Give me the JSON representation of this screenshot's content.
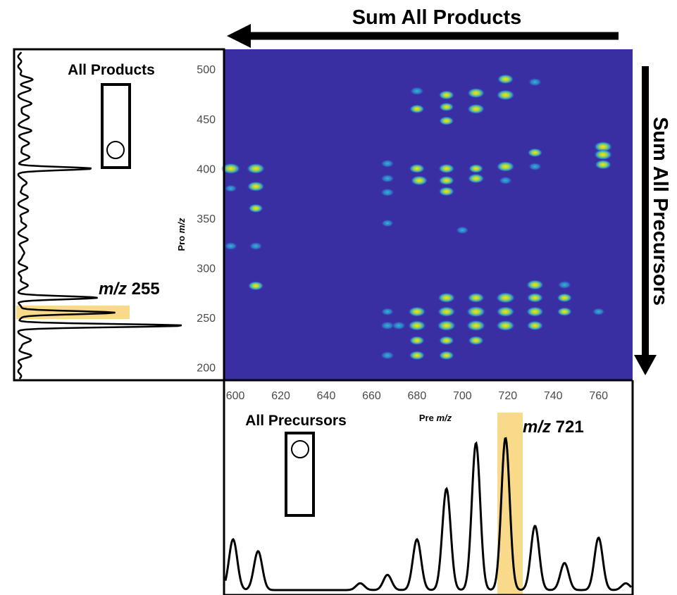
{
  "chart_data": [
    {
      "type": "heatmap",
      "xlabel": {
        "prefix": "Pre ",
        "italic": "m/z"
      },
      "ylabel": {
        "prefix": "Pro ",
        "italic": "m/z"
      },
      "xlim": [
        595,
        775
      ],
      "ylim": [
        187,
        520
      ],
      "xticks": [
        "600",
        "620",
        "640",
        "660",
        "680",
        "700",
        "720",
        "740",
        "760"
      ],
      "yticks": [
        "200",
        "250",
        "300",
        "350",
        "400",
        "450",
        "500"
      ],
      "colors": {
        "background": "#3a2ea3",
        "low": "#2ea5d8",
        "mid": "#33c4a0",
        "high": "#f5e31f"
      },
      "spots": [
        {
          "x": 598,
          "y": 400,
          "i": 1.0
        },
        {
          "x": 609,
          "y": 400,
          "i": 0.9
        },
        {
          "x": 609,
          "y": 382,
          "i": 0.8
        },
        {
          "x": 609,
          "y": 360,
          "i": 0.5
        },
        {
          "x": 609,
          "y": 322,
          "i": 0.3
        },
        {
          "x": 609,
          "y": 282,
          "i": 0.6
        },
        {
          "x": 598,
          "y": 380,
          "i": 0.2
        },
        {
          "x": 598,
          "y": 322,
          "i": 0.3
        },
        {
          "x": 667,
          "y": 405,
          "i": 0.3
        },
        {
          "x": 667,
          "y": 390,
          "i": 0.35
        },
        {
          "x": 667,
          "y": 376,
          "i": 0.35
        },
        {
          "x": 667,
          "y": 345,
          "i": 0.2
        },
        {
          "x": 680,
          "y": 478,
          "i": 0.4
        },
        {
          "x": 680,
          "y": 460,
          "i": 0.5
        },
        {
          "x": 680,
          "y": 400,
          "i": 0.6
        },
        {
          "x": 681,
          "y": 388,
          "i": 0.75
        },
        {
          "x": 693,
          "y": 474,
          "i": 0.6
        },
        {
          "x": 693,
          "y": 462,
          "i": 0.5
        },
        {
          "x": 693,
          "y": 448,
          "i": 0.5
        },
        {
          "x": 693,
          "y": 400,
          "i": 0.65
        },
        {
          "x": 693,
          "y": 388,
          "i": 0.6
        },
        {
          "x": 693,
          "y": 377,
          "i": 0.6
        },
        {
          "x": 706,
          "y": 476,
          "i": 0.8
        },
        {
          "x": 706,
          "y": 460,
          "i": 0.8
        },
        {
          "x": 706,
          "y": 400,
          "i": 0.5
        },
        {
          "x": 706,
          "y": 390,
          "i": 0.7
        },
        {
          "x": 719,
          "y": 490,
          "i": 0.7
        },
        {
          "x": 719,
          "y": 474,
          "i": 0.9
        },
        {
          "x": 719,
          "y": 402,
          "i": 0.9
        },
        {
          "x": 719,
          "y": 388,
          "i": 0.3
        },
        {
          "x": 732,
          "y": 487,
          "i": 0.35
        },
        {
          "x": 732,
          "y": 416,
          "i": 0.5
        },
        {
          "x": 732,
          "y": 402,
          "i": 0.3
        },
        {
          "x": 762,
          "y": 422,
          "i": 0.9
        },
        {
          "x": 762,
          "y": 414,
          "i": 0.9
        },
        {
          "x": 762,
          "y": 404,
          "i": 0.7
        },
        {
          "x": 700,
          "y": 338,
          "i": 0.25
        },
        {
          "x": 667,
          "y": 256,
          "i": 0.25
        },
        {
          "x": 667,
          "y": 242,
          "i": 0.4
        },
        {
          "x": 667,
          "y": 212,
          "i": 0.35
        },
        {
          "x": 672,
          "y": 242,
          "i": 0.4
        },
        {
          "x": 680,
          "y": 256,
          "i": 0.8
        },
        {
          "x": 680,
          "y": 242,
          "i": 0.85
        },
        {
          "x": 680,
          "y": 227,
          "i": 0.55
        },
        {
          "x": 680,
          "y": 212,
          "i": 0.6
        },
        {
          "x": 693,
          "y": 270,
          "i": 0.8
        },
        {
          "x": 693,
          "y": 256,
          "i": 0.85
        },
        {
          "x": 693,
          "y": 242,
          "i": 0.95
        },
        {
          "x": 693,
          "y": 227,
          "i": 0.55
        },
        {
          "x": 693,
          "y": 212,
          "i": 0.55
        },
        {
          "x": 706,
          "y": 270,
          "i": 0.75
        },
        {
          "x": 706,
          "y": 256,
          "i": 1.0
        },
        {
          "x": 706,
          "y": 242,
          "i": 1.0
        },
        {
          "x": 706,
          "y": 227,
          "i": 0.6
        },
        {
          "x": 719,
          "y": 270,
          "i": 1.0
        },
        {
          "x": 719,
          "y": 256,
          "i": 0.9
        },
        {
          "x": 719,
          "y": 242,
          "i": 0.95
        },
        {
          "x": 732,
          "y": 283,
          "i": 0.8
        },
        {
          "x": 732,
          "y": 270,
          "i": 0.7
        },
        {
          "x": 732,
          "y": 256,
          "i": 0.8
        },
        {
          "x": 732,
          "y": 242,
          "i": 0.7
        },
        {
          "x": 745,
          "y": 283,
          "i": 0.35
        },
        {
          "x": 745,
          "y": 270,
          "i": 0.55
        },
        {
          "x": 745,
          "y": 256,
          "i": 0.5
        },
        {
          "x": 760,
          "y": 256,
          "i": 0.2
        }
      ]
    },
    {
      "type": "line",
      "title": "All Products",
      "description_axis": "product m/z (vertical)",
      "ylim": [
        187,
        520
      ],
      "highlight": {
        "value": 255,
        "color": "#f9d98a"
      },
      "annotation": {
        "italic": "m/z",
        "value": " 255"
      },
      "peaks": [
        {
          "y": 490,
          "h": 0.12
        },
        {
          "y": 480,
          "h": 0.1
        },
        {
          "y": 465,
          "h": 0.12
        },
        {
          "y": 452,
          "h": 0.1
        },
        {
          "y": 438,
          "h": 0.1
        },
        {
          "y": 425,
          "h": 0.1
        },
        {
          "y": 412,
          "h": 0.1
        },
        {
          "y": 400,
          "h": 0.7
        },
        {
          "y": 385,
          "h": 0.08
        },
        {
          "y": 372,
          "h": 0.08
        },
        {
          "y": 357,
          "h": 0.08
        },
        {
          "y": 343,
          "h": 0.07
        },
        {
          "y": 328,
          "h": 0.07
        },
        {
          "y": 315,
          "h": 0.06
        },
        {
          "y": 300,
          "h": 0.06
        },
        {
          "y": 283,
          "h": 0.08
        },
        {
          "y": 270,
          "h": 0.75
        },
        {
          "y": 255,
          "h": 0.95
        },
        {
          "y": 242,
          "h": 1.6
        },
        {
          "y": 227,
          "h": 0.12
        },
        {
          "y": 212,
          "h": 0.1
        }
      ]
    },
    {
      "type": "line",
      "title": "All Precursors",
      "description_axis": "precursor m/z (horizontal)",
      "xlim": [
        595,
        775
      ],
      "highlight": {
        "value": 721,
        "color": "#f9d98a"
      },
      "annotation": {
        "italic": "m/z",
        "value": " 721"
      },
      "peaks": [
        {
          "x": 599,
          "h": 0.3
        },
        {
          "x": 610,
          "h": 0.23
        },
        {
          "x": 655,
          "h": 0.04
        },
        {
          "x": 667,
          "h": 0.09
        },
        {
          "x": 680,
          "h": 0.3
        },
        {
          "x": 693,
          "h": 0.6
        },
        {
          "x": 706,
          "h": 0.87
        },
        {
          "x": 719,
          "h": 0.9
        },
        {
          "x": 732,
          "h": 0.38
        },
        {
          "x": 745,
          "h": 0.16
        },
        {
          "x": 760,
          "h": 0.31
        },
        {
          "x": 772,
          "h": 0.04
        }
      ]
    }
  ],
  "arrows": {
    "top_label": "Sum All Products",
    "right_label": "Sum All Precursors"
  }
}
